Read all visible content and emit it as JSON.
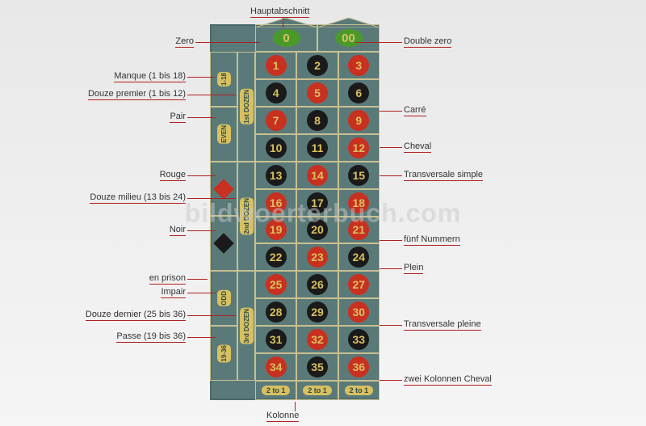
{
  "watermark": "bildwoerterbuch.com",
  "zeros": [
    {
      "label": "0"
    },
    {
      "label": "00"
    }
  ],
  "numbers": [
    {
      "n": "1",
      "c": "red"
    },
    {
      "n": "2",
      "c": "black"
    },
    {
      "n": "3",
      "c": "red"
    },
    {
      "n": "4",
      "c": "black"
    },
    {
      "n": "5",
      "c": "red"
    },
    {
      "n": "6",
      "c": "black"
    },
    {
      "n": "7",
      "c": "red"
    },
    {
      "n": "8",
      "c": "black"
    },
    {
      "n": "9",
      "c": "red"
    },
    {
      "n": "10",
      "c": "black"
    },
    {
      "n": "11",
      "c": "black"
    },
    {
      "n": "12",
      "c": "red"
    },
    {
      "n": "13",
      "c": "black"
    },
    {
      "n": "14",
      "c": "red"
    },
    {
      "n": "15",
      "c": "black"
    },
    {
      "n": "16",
      "c": "red"
    },
    {
      "n": "17",
      "c": "black"
    },
    {
      "n": "18",
      "c": "red"
    },
    {
      "n": "19",
      "c": "red"
    },
    {
      "n": "20",
      "c": "black"
    },
    {
      "n": "21",
      "c": "red"
    },
    {
      "n": "22",
      "c": "black"
    },
    {
      "n": "23",
      "c": "red"
    },
    {
      "n": "24",
      "c": "black"
    },
    {
      "n": "25",
      "c": "red"
    },
    {
      "n": "26",
      "c": "black"
    },
    {
      "n": "27",
      "c": "red"
    },
    {
      "n": "28",
      "c": "black"
    },
    {
      "n": "29",
      "c": "black"
    },
    {
      "n": "30",
      "c": "red"
    },
    {
      "n": "31",
      "c": "black"
    },
    {
      "n": "32",
      "c": "red"
    },
    {
      "n": "33",
      "c": "black"
    },
    {
      "n": "34",
      "c": "red"
    },
    {
      "n": "35",
      "c": "black"
    },
    {
      "n": "36",
      "c": "red"
    }
  ],
  "column_labels": [
    "2 to 1",
    "2 to 1",
    "2 to 1"
  ],
  "dozens": [
    "1st DOZEN",
    "2nd DOZEN",
    "3rd DOZEN"
  ],
  "outside": [
    {
      "type": "text",
      "label": "1-18"
    },
    {
      "type": "text",
      "label": "EVEN"
    },
    {
      "type": "diamond",
      "color": "red"
    },
    {
      "type": "diamond",
      "color": "black"
    },
    {
      "type": "text",
      "label": "ODD"
    },
    {
      "type": "text",
      "label": "19-36"
    }
  ],
  "callouts": {
    "hauptabschnitt": "Hauptabschnitt",
    "zero": "Zero",
    "double_zero": "Double zero",
    "manque": "Manque (1 bis 18)",
    "douze_premier": "Douze premier (1 bis 12)",
    "pair": "Pair",
    "carre": "Carré",
    "cheval": "Cheval",
    "transversale_simple": "Transversale simple",
    "rouge": "Rouge",
    "douze_milieu": "Douze milieu (13 bis 24)",
    "noir": "Noir",
    "funf_nummern": "fünf Nummern",
    "plein": "Plein",
    "en_prison": "en prison",
    "impair": "Impair",
    "douze_dernier": "Douze dernier (25 bis 36)",
    "transversale_pleine": "Transversale pleine",
    "passe": "Passe (19 bis 36)",
    "zwei_kolonnen": "zwei Kolonnen Cheval",
    "kolonne": "Kolonne"
  },
  "colors": {
    "felt": "#5a7a7a",
    "line": "#c8c090",
    "label_bg": "#d8c060",
    "red": "#c83020",
    "black": "#1a1a1a",
    "green": "#4a9a2a",
    "leader": "#b02020"
  }
}
